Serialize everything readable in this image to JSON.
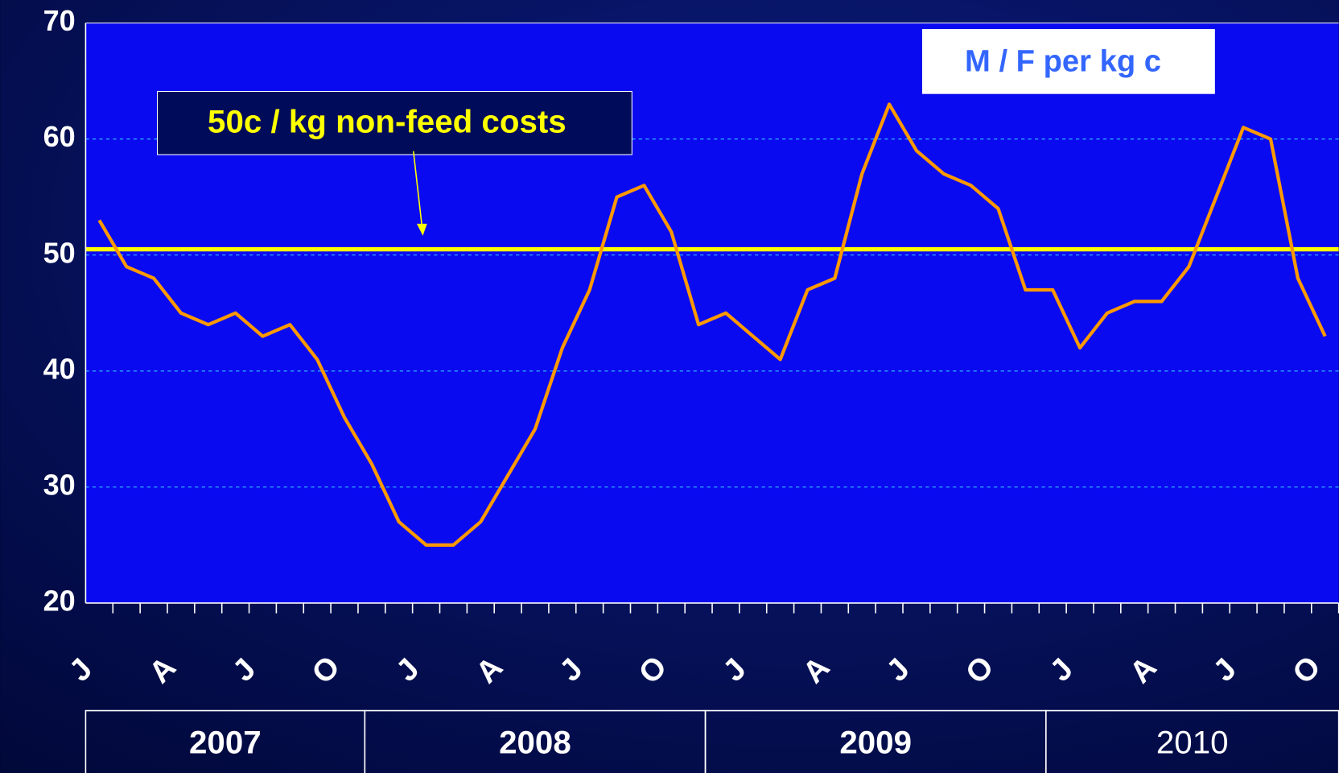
{
  "chart_data": {
    "type": "line",
    "categories": [
      "J",
      null,
      null,
      "A",
      null,
      null,
      "J",
      null,
      null,
      "O",
      null,
      null,
      "J",
      null,
      null,
      "A",
      null,
      null,
      "J",
      null,
      null,
      "O",
      null,
      null,
      "J",
      null,
      null,
      "A",
      null,
      null,
      "J",
      null,
      null,
      "O",
      null,
      null,
      "J",
      null,
      null,
      "A",
      null,
      null,
      "J",
      null,
      null,
      "O"
    ],
    "years": [
      "2007",
      "2008",
      "2009",
      "2010"
    ],
    "series": [
      {
        "name": "M / F per kg c",
        "color": "#ff9900",
        "values": [
          53,
          49,
          48,
          45,
          44,
          45,
          43,
          44,
          41,
          36,
          32,
          27,
          25,
          25,
          27,
          31,
          35,
          42,
          47,
          55,
          56,
          52,
          44,
          45,
          43,
          41,
          47,
          48,
          57,
          63,
          59,
          57,
          56,
          54,
          47,
          47,
          42,
          45,
          46,
          46,
          49,
          55,
          61,
          60,
          48,
          43
        ]
      }
    ],
    "reference_line": {
      "value": 50.5,
      "color": "#ffff00",
      "label": "50c / kg non-feed costs"
    },
    "ylim": [
      20,
      70
    ],
    "yticks": [
      20,
      30,
      40,
      50,
      60,
      70
    ],
    "grid": true
  }
}
